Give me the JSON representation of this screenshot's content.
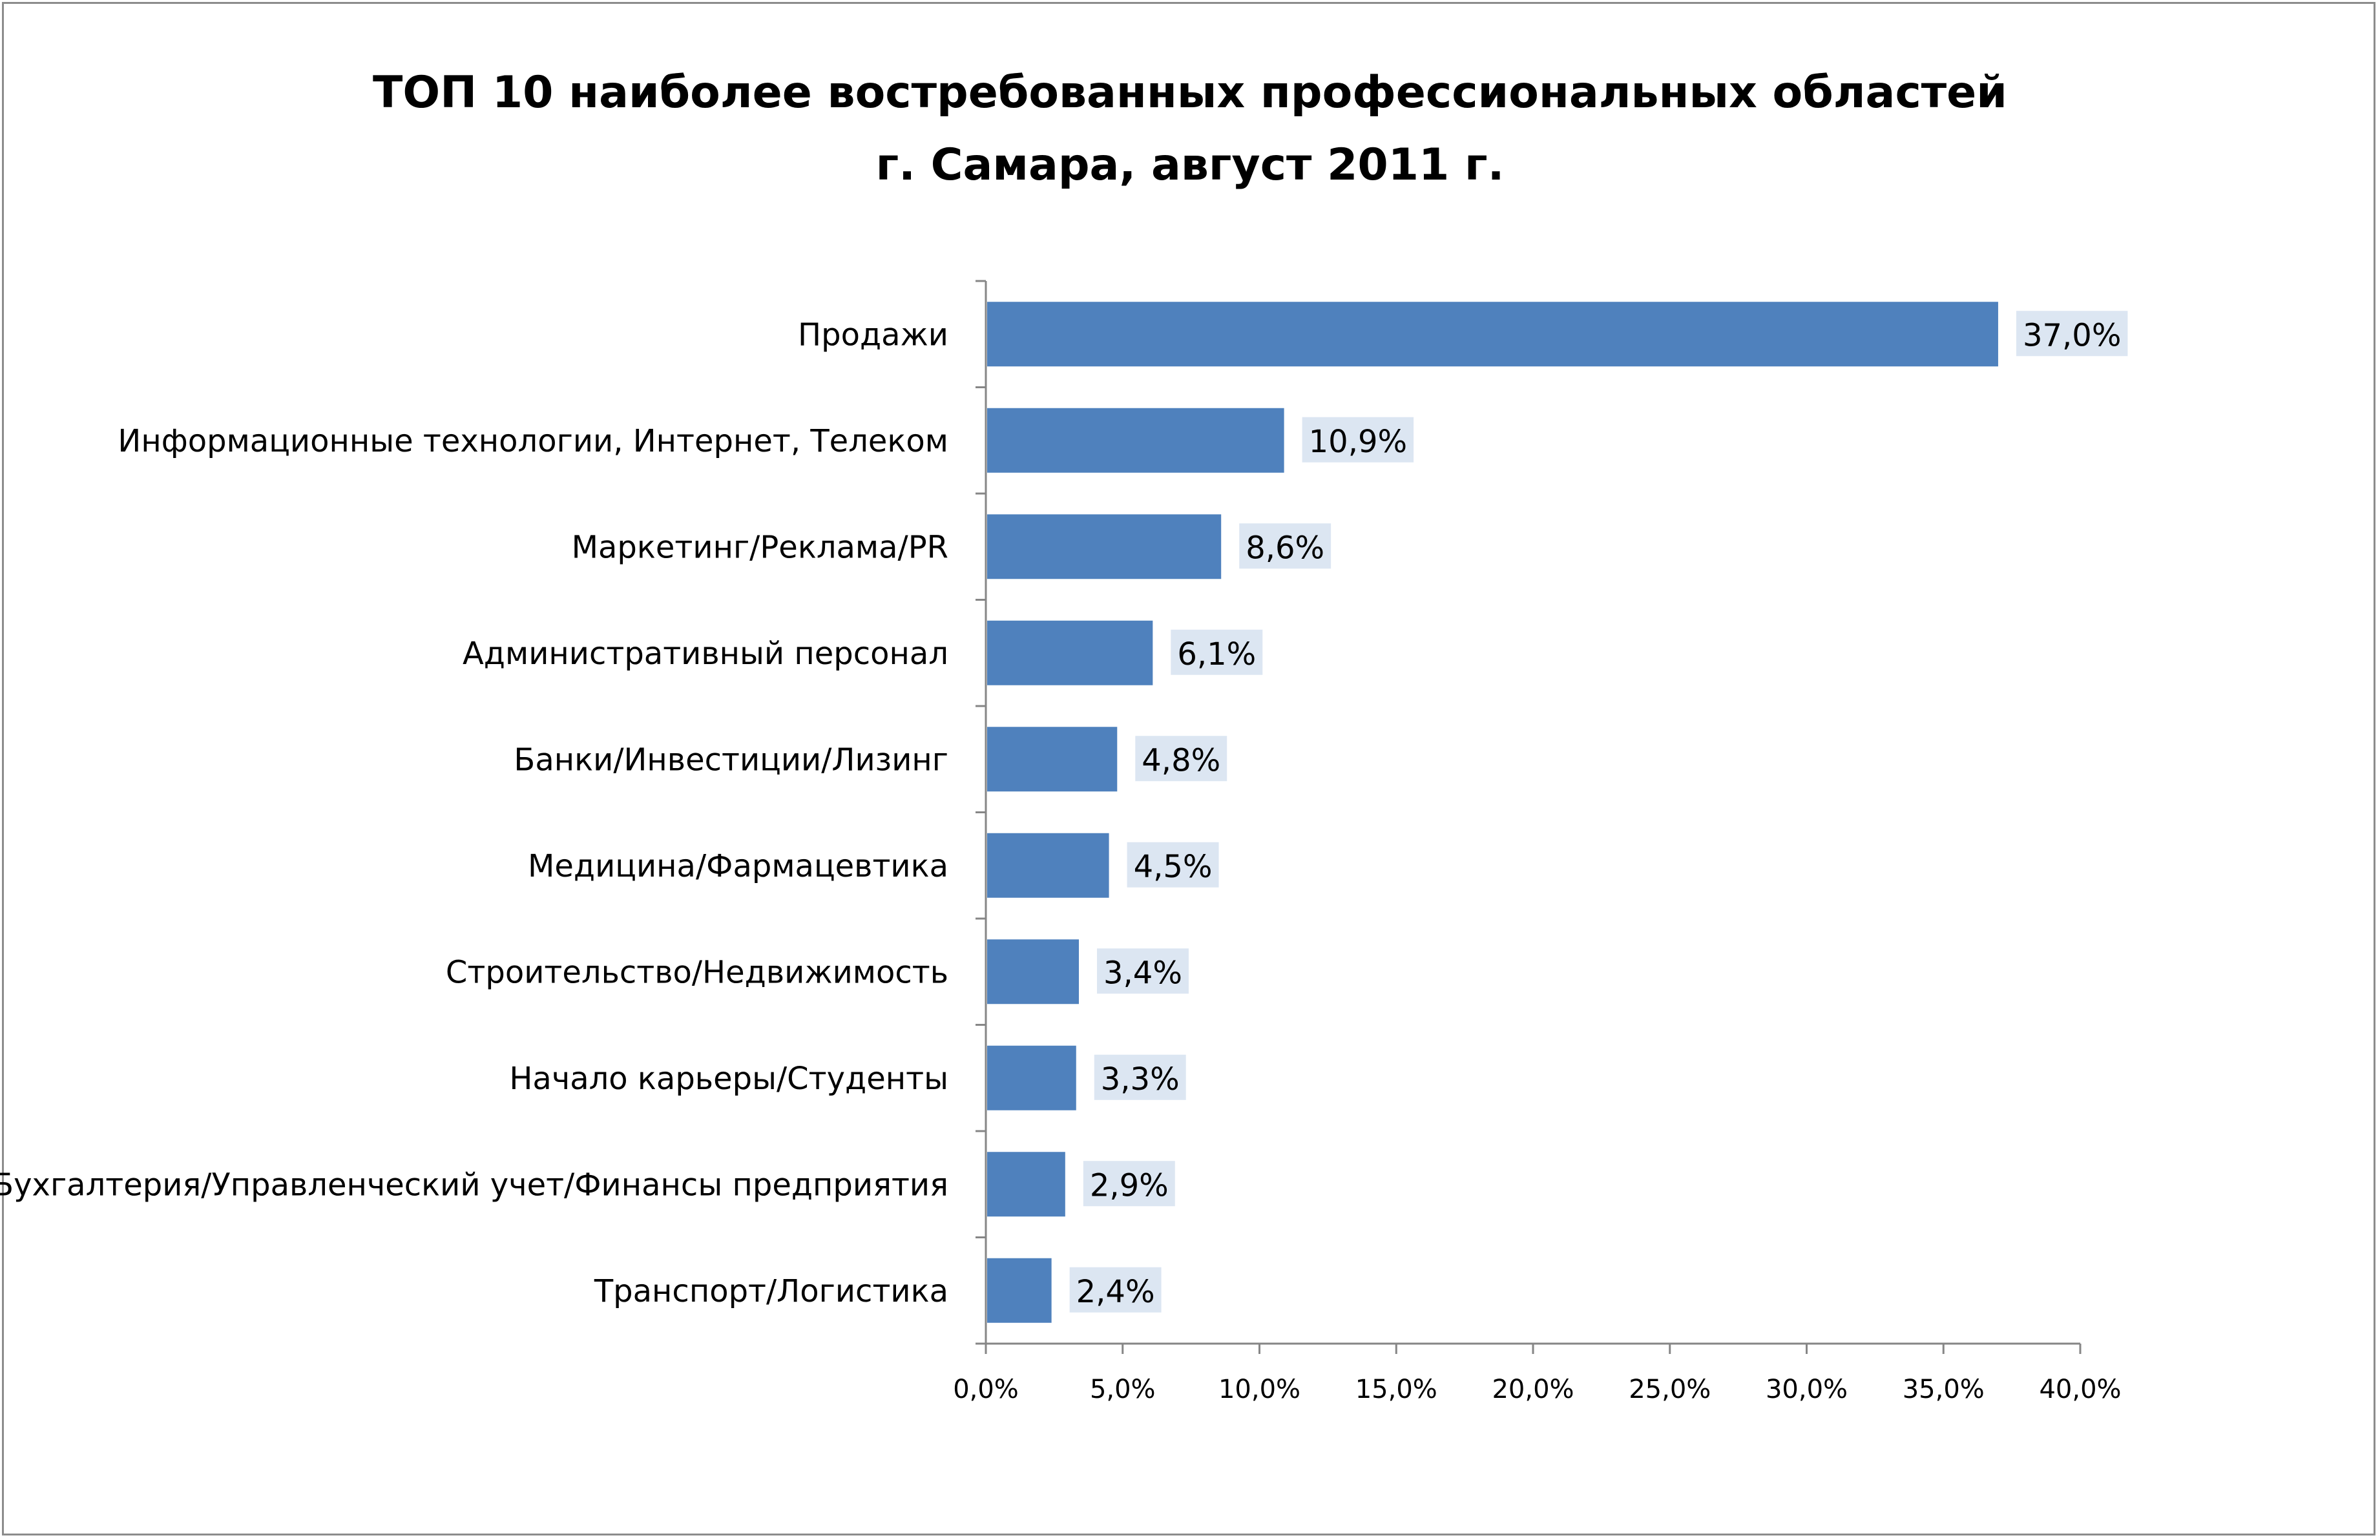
{
  "chart_data": {
    "type": "bar",
    "orientation": "horizontal",
    "title_lines": [
      "ТОП 10 наиболее востребованных профессиональных областей",
      "г. Самара, август 2011 г."
    ],
    "categories": [
      "Продажи",
      "Информационные технологии, Интернет, Телеком",
      "Маркетинг/Реклама/PR",
      "Административный персонал",
      "Банки/Инвестиции/Лизинг",
      "Медицина/Фармацевтика",
      "Строительство/Недвижимость",
      "Начало карьеры/Студенты",
      "Бухгалтерия/Управленческий учет/Финансы предприятия",
      "Транспорт/Логистика"
    ],
    "values": [
      37.0,
      10.9,
      8.6,
      6.1,
      4.8,
      4.5,
      3.4,
      3.3,
      2.9,
      2.4
    ],
    "value_labels": [
      "37,0%",
      "10,9%",
      "8,6%",
      "6,1%",
      "4,8%",
      "4,5%",
      "3,4%",
      "3,3%",
      "2,9%",
      "2,4%"
    ],
    "xlim": [
      0,
      40
    ],
    "x_ticks": [
      0,
      5,
      10,
      15,
      20,
      25,
      30,
      35,
      40
    ],
    "x_tick_labels": [
      "0,0%",
      "5,0%",
      "10,0%",
      "15,0%",
      "20,0%",
      "25,0%",
      "30,0%",
      "35,0%",
      "40,0%"
    ],
    "grid": false,
    "legend": "none",
    "colors": {
      "bar": "#4f81bd",
      "value_label_bg": "#dce6f2",
      "axis": "#868686",
      "frame": "#8c8c8c"
    }
  }
}
